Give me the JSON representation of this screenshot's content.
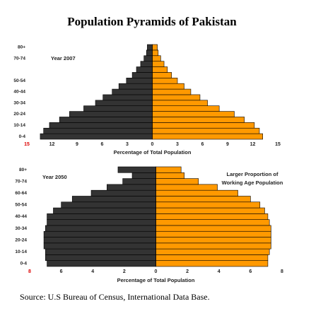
{
  "title": "Population Pyramids of Pakistan",
  "source": "Source: U.S Bureau of Census, International Data Base.",
  "chart_data": [
    {
      "type": "pyramid",
      "annotation": "Year 2007",
      "xlabel": "Percentage of Total Population",
      "categories": [
        "0-4",
        null,
        "10-14",
        null,
        "20-24",
        null,
        "30-34",
        null,
        "40-44",
        null,
        "50-54",
        null,
        null,
        null,
        "70-74",
        null,
        "80+"
      ],
      "series": [
        {
          "color": "#333333",
          "values": [
            13.4,
            13.0,
            12.3,
            11.1,
            9.9,
            8.2,
            6.8,
            5.9,
            4.8,
            4.0,
            3.1,
            2.4,
            1.9,
            1.4,
            1.0,
            0.7,
            0.6
          ]
        },
        {
          "color": "#ff9900",
          "values": [
            13.2,
            12.8,
            12.2,
            11.0,
            9.8,
            8.0,
            6.6,
            5.7,
            4.6,
            3.8,
            3.0,
            2.3,
            1.8,
            1.4,
            1.0,
            0.7,
            0.6
          ]
        }
      ],
      "xlim": [
        -15,
        15
      ],
      "xticks": [
        {
          "value": -15,
          "label": "15"
        },
        {
          "value": -12,
          "label": "12"
        },
        {
          "value": -9,
          "label": "9"
        },
        {
          "value": -6,
          "label": "6"
        },
        {
          "value": -3,
          "label": "3"
        },
        0,
        3,
        6,
        9,
        12,
        15
      ],
      "left_end_tick_color": "#dd0000"
    },
    {
      "type": "pyramid",
      "annotation": "Year 2050",
      "xlabel": "Percentage of Total Population",
      "note": [
        "Larger Proportion of",
        "Working Age Population"
      ],
      "categories": [
        "0-4",
        null,
        "10-14",
        null,
        "20-24",
        null,
        "30-34",
        null,
        "40-44",
        null,
        "50-54",
        null,
        "60-64",
        null,
        "70-74",
        null,
        "80+"
      ],
      "series": [
        {
          "color": "#333333",
          "values": [
            6.9,
            7.0,
            7.0,
            7.1,
            7.1,
            7.1,
            7.0,
            6.9,
            6.9,
            6.5,
            6.0,
            5.3,
            4.1,
            3.1,
            2.1,
            1.5,
            2.4
          ]
        },
        {
          "color": "#ff9900",
          "values": [
            7.1,
            7.1,
            7.2,
            7.3,
            7.3,
            7.3,
            7.3,
            7.2,
            7.1,
            6.9,
            6.6,
            6.0,
            5.2,
            3.9,
            2.7,
            1.8,
            1.6
          ]
        }
      ],
      "xlim": [
        -8,
        8
      ],
      "xticks": [
        {
          "value": -8,
          "label": "8"
        },
        {
          "value": -6,
          "label": "6"
        },
        {
          "value": -4,
          "label": "4"
        },
        {
          "value": -2,
          "label": "2"
        },
        0,
        2,
        4,
        6,
        8
      ],
      "left_end_tick_color": "#dd0000"
    }
  ]
}
